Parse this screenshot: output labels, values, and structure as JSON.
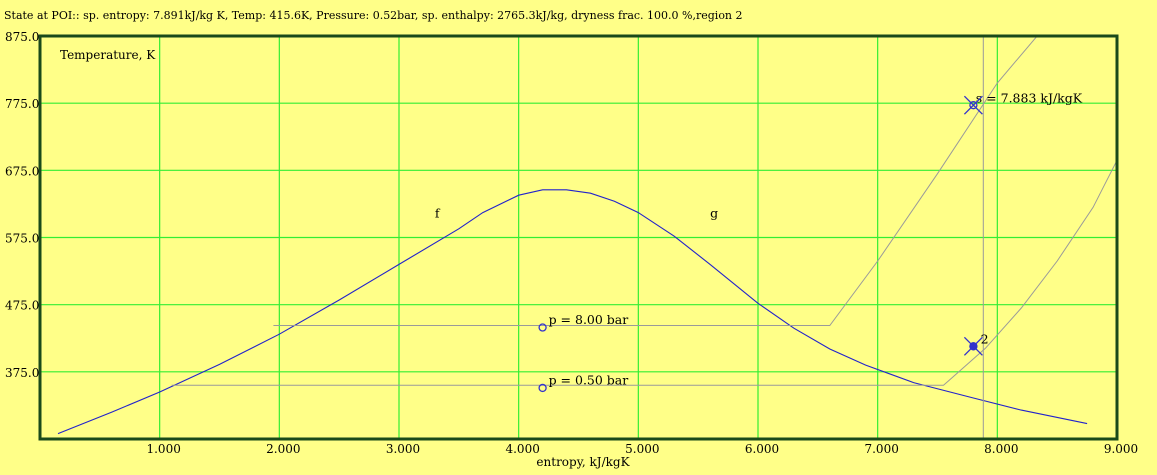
{
  "status_text": "State at POI:: sp. entropy: 7.891kJ/kg K, Temp: 415.6K, Pressure: 0.52bar, sp. enthalpy: 2765.3kJ/kg, dryness frac. 100.0 %,region 2",
  "colors": {
    "background": "#ffff88",
    "frame": "#1a4a1a",
    "grid": "#33ee33",
    "saturation_dome": "#2222cc",
    "process_lines": "#9a9a9a",
    "markers": "#3333cc"
  },
  "chart_data": {
    "type": "line",
    "title": "",
    "xlabel": "entropy, kJ/kgK",
    "ylabel": "Temperature, K",
    "xlim": [
      0,
      9.0
    ],
    "ylim": [
      275,
      875
    ],
    "grid": true,
    "x_ticks": [
      1.0,
      2.0,
      3.0,
      4.0,
      5.0,
      6.0,
      7.0,
      8.0,
      9.0
    ],
    "x_tick_labels": [
      "1.000",
      "2.000",
      "3.000",
      "4.000",
      "5.000",
      "6.000",
      "7.000",
      "8.000",
      "9.000"
    ],
    "y_ticks": [
      375,
      475,
      575,
      675,
      775,
      875
    ],
    "y_tick_labels": [
      "375.0",
      "475.0",
      "575.0",
      "675.0",
      "775.0",
      "875.0"
    ],
    "dome_labels": [
      {
        "text": "f",
        "x": 3.3,
        "y": 605
      },
      {
        "text": "g",
        "x": 5.6,
        "y": 605
      }
    ],
    "series": [
      {
        "type": "saturation_dome",
        "x": [
          0.15,
          0.6,
          1.0,
          1.5,
          2.0,
          2.5,
          3.0,
          3.5,
          3.7,
          4.0,
          4.2,
          4.4,
          4.6,
          4.8,
          5.0,
          5.3,
          5.6,
          6.0,
          6.3,
          6.6,
          6.9,
          7.3,
          7.8,
          8.2,
          8.75
        ],
        "y": [
          283,
          315,
          345,
          386,
          431,
          482,
          535,
          588,
          612,
          638,
          646,
          646,
          641,
          629,
          612,
          577,
          535,
          477,
          440,
          409,
          385,
          359,
          336,
          318,
          298
        ]
      },
      {
        "name": "p = 8.00 bar",
        "x": [
          1.95,
          6.6,
          7.0,
          7.5,
          8.0,
          8.3,
          8.5
        ],
        "y": [
          444,
          444,
          540,
          670,
          805,
          868,
          910
        ]
      },
      {
        "name": "p = 0.50 bar",
        "x": [
          1.1,
          7.55,
          7.9,
          8.2,
          8.5,
          8.8,
          9.0
        ],
        "y": [
          355,
          355,
          410,
          470,
          540,
          620,
          690
        ]
      },
      {
        "name": "s = 7.883 kJ/kgK",
        "x": [
          7.883,
          7.883
        ],
        "y": [
          875,
          275
        ]
      }
    ],
    "annotations": [
      {
        "text": "p = 8.00 bar",
        "x": 4.25,
        "y": 446
      },
      {
        "text": "p = 0.50 bar",
        "x": 4.25,
        "y": 356
      },
      {
        "text": "s = 7.883 kJ/kgK",
        "x": 7.82,
        "y": 776
      },
      {
        "text": "2",
        "x": 7.86,
        "y": 417
      }
    ],
    "points": [
      {
        "x": 4.2,
        "y": 441
      },
      {
        "x": 4.2,
        "y": 351
      },
      {
        "x": 7.8,
        "y": 772
      },
      {
        "x": 7.8,
        "y": 413
      }
    ],
    "poi": {
      "x": 7.8,
      "y": 413
    }
  }
}
